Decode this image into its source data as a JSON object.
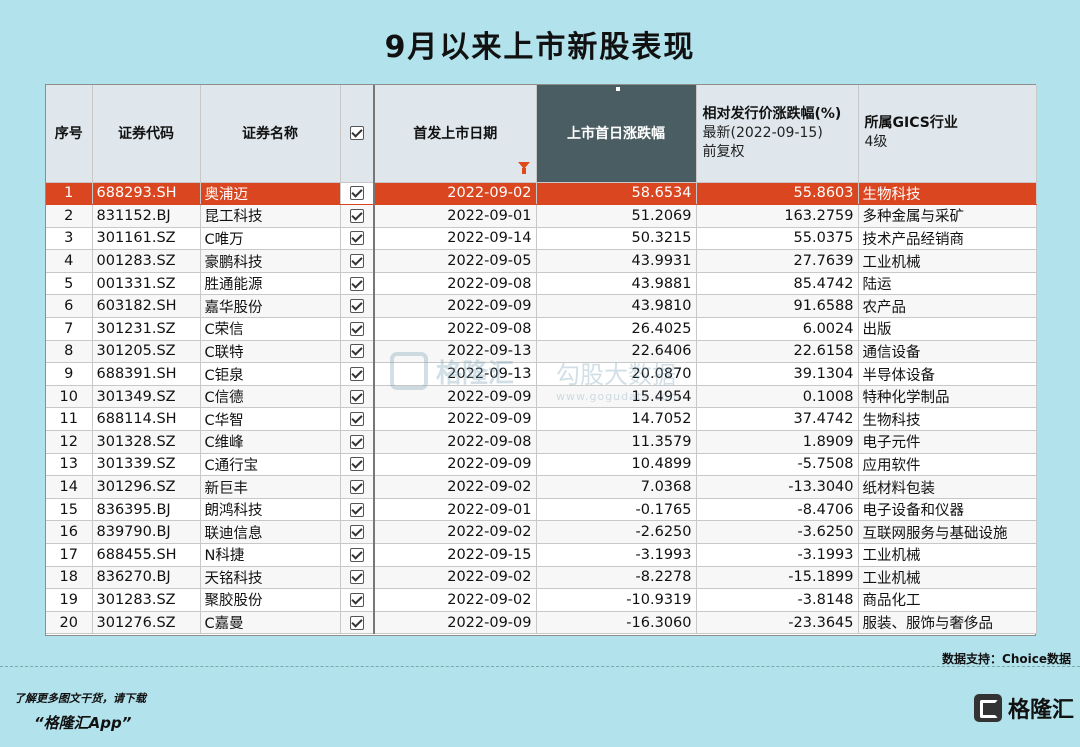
{
  "title": "9月以来上市新股表现",
  "table": {
    "headers": {
      "seq": "序号",
      "code": "证券代码",
      "name": "证券名称",
      "ipo_date": "首发上市日期",
      "first_day": "上市首日涨跌幅",
      "rel_line1": "相对发行价涨跌幅(%)",
      "rel_line2": "最新(2022-09-15)",
      "rel_line3": "前复权",
      "industry_line1": "所属GICS行业",
      "industry_line2": "4级"
    },
    "rows": [
      {
        "seq": "1",
        "code": "688293.SH",
        "name": "奥浦迈",
        "date": "2022-09-02",
        "first_day": "58.6534",
        "rel": "55.8603",
        "industry": "生物科技"
      },
      {
        "seq": "2",
        "code": "831152.BJ",
        "name": "昆工科技",
        "date": "2022-09-01",
        "first_day": "51.2069",
        "rel": "163.2759",
        "industry": "多种金属与采矿"
      },
      {
        "seq": "3",
        "code": "301161.SZ",
        "name": "C唯万",
        "date": "2022-09-14",
        "first_day": "50.3215",
        "rel": "55.0375",
        "industry": "技术产品经销商"
      },
      {
        "seq": "4",
        "code": "001283.SZ",
        "name": "豪鹏科技",
        "date": "2022-09-05",
        "first_day": "43.9931",
        "rel": "27.7639",
        "industry": "工业机械"
      },
      {
        "seq": "5",
        "code": "001331.SZ",
        "name": "胜通能源",
        "date": "2022-09-08",
        "first_day": "43.9881",
        "rel": "85.4742",
        "industry": "陆运"
      },
      {
        "seq": "6",
        "code": "603182.SH",
        "name": "嘉华股份",
        "date": "2022-09-09",
        "first_day": "43.9810",
        "rel": "91.6588",
        "industry": "农产品"
      },
      {
        "seq": "7",
        "code": "301231.SZ",
        "name": "C荣信",
        "date": "2022-09-08",
        "first_day": "26.4025",
        "rel": "6.0024",
        "industry": "出版"
      },
      {
        "seq": "8",
        "code": "301205.SZ",
        "name": "C联特",
        "date": "2022-09-13",
        "first_day": "22.6406",
        "rel": "22.6158",
        "industry": "通信设备"
      },
      {
        "seq": "9",
        "code": "688391.SH",
        "name": "C钜泉",
        "date": "2022-09-13",
        "first_day": "20.0870",
        "rel": "39.1304",
        "industry": "半导体设备"
      },
      {
        "seq": "10",
        "code": "301349.SZ",
        "name": "C信德",
        "date": "2022-09-09",
        "first_day": "15.4954",
        "rel": "0.1008",
        "industry": "特种化学制品"
      },
      {
        "seq": "11",
        "code": "688114.SH",
        "name": "C华智",
        "date": "2022-09-09",
        "first_day": "14.7052",
        "rel": "37.4742",
        "industry": "生物科技"
      },
      {
        "seq": "12",
        "code": "301328.SZ",
        "name": "C维峰",
        "date": "2022-09-08",
        "first_day": "11.3579",
        "rel": "1.8909",
        "industry": "电子元件"
      },
      {
        "seq": "13",
        "code": "301339.SZ",
        "name": "C通行宝",
        "date": "2022-09-09",
        "first_day": "10.4899",
        "rel": "-5.7508",
        "industry": "应用软件"
      },
      {
        "seq": "14",
        "code": "301296.SZ",
        "name": "新巨丰",
        "date": "2022-09-02",
        "first_day": "7.0368",
        "rel": "-13.3040",
        "industry": "纸材料包装"
      },
      {
        "seq": "15",
        "code": "836395.BJ",
        "name": "朗鸿科技",
        "date": "2022-09-01",
        "first_day": "-0.1765",
        "rel": "-8.4706",
        "industry": "电子设备和仪器"
      },
      {
        "seq": "16",
        "code": "839790.BJ",
        "name": "联迪信息",
        "date": "2022-09-02",
        "first_day": "-2.6250",
        "rel": "-3.6250",
        "industry": "互联网服务与基础设施"
      },
      {
        "seq": "17",
        "code": "688455.SH",
        "name": "N科捷",
        "date": "2022-09-15",
        "first_day": "-3.1993",
        "rel": "-3.1993",
        "industry": "工业机械"
      },
      {
        "seq": "18",
        "code": "836270.BJ",
        "name": "天铭科技",
        "date": "2022-09-02",
        "first_day": "-8.2278",
        "rel": "-15.1899",
        "industry": "工业机械"
      },
      {
        "seq": "19",
        "code": "301283.SZ",
        "name": "聚胶股份",
        "date": "2022-09-02",
        "first_day": "-10.9319",
        "rel": "-3.8148",
        "industry": "商品化工"
      },
      {
        "seq": "20",
        "code": "301276.SZ",
        "name": "C嘉曼",
        "date": "2022-09-09",
        "first_day": "-16.3060",
        "rel": "-23.3645",
        "industry": "服装、服饰与奢侈品"
      }
    ]
  },
  "watermark": {
    "brand": "格隆汇",
    "site_name": "勾股大数据",
    "site_url": "www.gogudata.com"
  },
  "footer": {
    "source": "数据支持：Choice数据",
    "promo_line1": "了解更多图文干货，请下载",
    "promo_line2": "“格隆汇App”",
    "brand": "格隆汇"
  },
  "colors": {
    "background": "#b2e2ec",
    "header": "#dfe7ec",
    "highlight_header": "#4a5d63",
    "selected_row": "#d9461f",
    "filter_icon": "#e04a1a"
  }
}
